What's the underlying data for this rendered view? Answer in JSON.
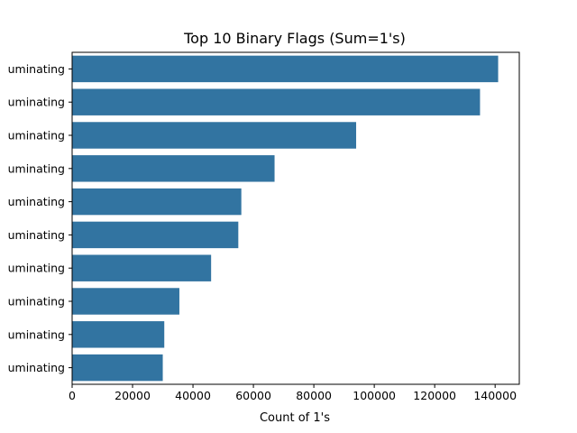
{
  "chart_data": {
    "type": "bar",
    "orientation": "horizontal",
    "title": "Top 10 Binary Flags (Sum=1's)",
    "xlabel": "Count of 1's",
    "ylabel": "",
    "xlim": [
      0,
      148000
    ],
    "xticks": [
      0,
      20000,
      40000,
      60000,
      80000,
      100000,
      120000,
      140000
    ],
    "xtick_labels": [
      "0",
      "20000",
      "40000",
      "60000",
      "80000",
      "100000",
      "120000",
      "140000"
    ],
    "categories": [
      "uminating",
      "uminating",
      "uminating",
      "uminating",
      "uminating",
      "uminating",
      "uminating",
      "uminating",
      "uminating",
      "uminating"
    ],
    "values": [
      141000,
      135000,
      94000,
      67000,
      56000,
      55000,
      46000,
      35500,
      30500,
      30000
    ],
    "bar_color": "#3274a1",
    "grid": false,
    "legend": "none"
  }
}
